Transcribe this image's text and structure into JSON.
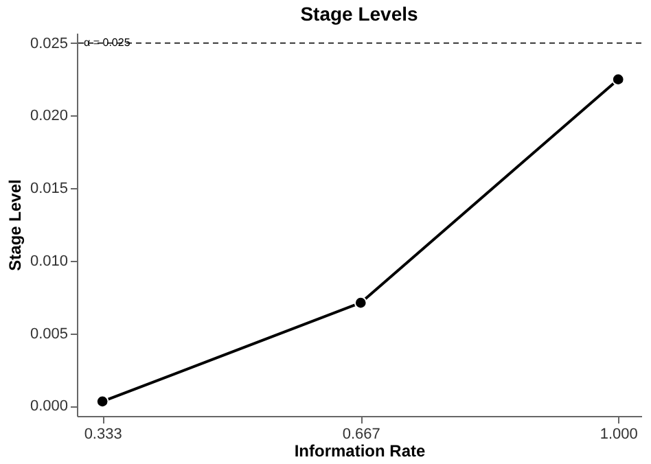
{
  "chart_data": {
    "type": "line",
    "title": "Stage Levels",
    "xlabel": "Information Rate",
    "ylabel": "Stage Level",
    "x": [
      0.333,
      0.667,
      1.0
    ],
    "series": [
      {
        "color": "#000000",
        "values": [
          0.0003,
          0.0071,
          0.0225
        ]
      }
    ],
    "xlim": [
      0.3,
      1.03
    ],
    "xticks": [
      0.333,
      0.667,
      {
        "value": 1.0,
        "label": "1.000"
      }
    ],
    "ylim": [
      -0.0007,
      0.0257
    ],
    "yticks": [
      {
        "value": 0,
        "label": "0.000"
      },
      {
        "value": 0.005,
        "label": "0.005"
      },
      {
        "value": 0.01,
        "label": "0.010"
      },
      {
        "value": 0.015,
        "label": "0.015"
      },
      {
        "value": 0.02,
        "label": "0.020"
      },
      {
        "value": 0.025,
        "label": "0.025"
      }
    ],
    "ref_lines": [
      {
        "axis": "y",
        "value": 0.025,
        "label": "α = 0.025",
        "line_style": "dashed",
        "color": "#333333"
      }
    ],
    "marker": "circle",
    "line_style": "solid",
    "grid": false,
    "legend": false
  }
}
